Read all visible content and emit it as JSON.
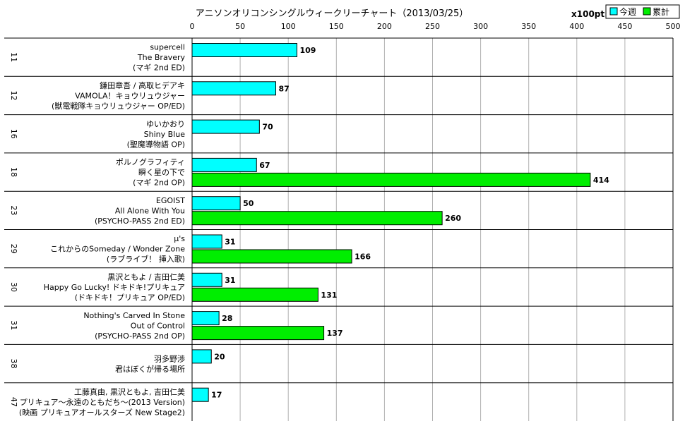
{
  "chart_data": {
    "type": "bar",
    "orientation": "horizontal",
    "title": "アニソンオリコンシングルウィークリーチャート（2013/03/25）",
    "unit": "x100pt",
    "xlim": [
      0,
      500
    ],
    "xticks": [
      0,
      50,
      100,
      150,
      200,
      250,
      300,
      350,
      400,
      450,
      500
    ],
    "grid": true,
    "legend_position": "top-right",
    "series": [
      {
        "name": "今週",
        "color": "#00ffff"
      },
      {
        "name": "累計",
        "color": "#00ee00"
      }
    ],
    "entries": [
      {
        "rank": "11",
        "lines": [
          "supercell",
          "The Bravery",
          "(マギ 2nd ED)"
        ],
        "weekly": 109,
        "total": null
      },
      {
        "rank": "12",
        "lines": [
          "鎌田章吾 / 高取ヒデアキ",
          "VAMOLA！キョウリュウジャー",
          "(獣電戦隊キョウリュウジャー OP/ED)"
        ],
        "weekly": 87,
        "total": null
      },
      {
        "rank": "16",
        "lines": [
          "ゆいかおり",
          "Shiny Blue",
          "(聖魔導物語 OP)"
        ],
        "weekly": 70,
        "total": null
      },
      {
        "rank": "18",
        "lines": [
          "ポルノグラフィティ",
          "瞬く星の下で",
          "(マギ 2nd OP)"
        ],
        "weekly": 67,
        "total": 414
      },
      {
        "rank": "23",
        "lines": [
          "EGOIST",
          "All Alone With You",
          "(PSYCHO-PASS 2nd ED)"
        ],
        "weekly": 50,
        "total": 260
      },
      {
        "rank": "29",
        "lines": [
          "μ's",
          "これからのSomeday / Wonder Zone",
          "(ラブライブ！ 挿入歌)"
        ],
        "weekly": 31,
        "total": 166
      },
      {
        "rank": "30",
        "lines": [
          "黒沢ともよ / 吉田仁美",
          "Happy Go Lucky! ドキドキ!プリキュア",
          "(ドキドキ！プリキュア OP/ED)"
        ],
        "weekly": 31,
        "total": 131
      },
      {
        "rank": "31",
        "lines": [
          "Nothing's Carved In Stone",
          "Out of Control",
          "(PSYCHO-PASS 2nd OP)"
        ],
        "weekly": 28,
        "total": 137
      },
      {
        "rank": "38",
        "lines": [
          "羽多野渉",
          "君はぼくが帰る場所"
        ],
        "weekly": 20,
        "total": null
      },
      {
        "rank": "47",
        "lines": [
          "工藤真由, 黒沢ともよ, 吉田仁美",
          "プリキュア～永遠のともだち～(2013 Version)",
          "(映画 プリキュアオールスターズ New Stage2)"
        ],
        "weekly": 17,
        "total": null
      }
    ]
  }
}
